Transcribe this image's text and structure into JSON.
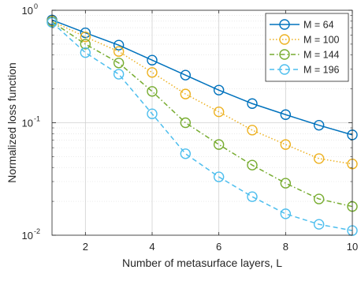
{
  "chart_data": {
    "type": "line",
    "title": "",
    "xlabel": "Number of metasurface layers, L",
    "ylabel": "Normalized loss function",
    "x": [
      1,
      2,
      3,
      4,
      5,
      6,
      7,
      8,
      9,
      10
    ],
    "xlim": [
      1,
      10
    ],
    "xticks": [
      2,
      4,
      6,
      8,
      10
    ],
    "xtick_labels": [
      "2",
      "4",
      "6",
      "8",
      "10"
    ],
    "ylim": [
      0.01,
      1
    ],
    "yscale": "log",
    "ytick_labels": [
      {
        "base": "10",
        "exp": "0"
      },
      {
        "base": "10",
        "exp": "-1"
      },
      {
        "base": "10",
        "exp": "-2"
      }
    ],
    "grid": true,
    "legend_position": "top-right",
    "series": [
      {
        "name": "M = 64",
        "color": "#0072BD",
        "line_style": "solid",
        "marker": "circle",
        "values": [
          0.82,
          0.63,
          0.49,
          0.36,
          0.265,
          0.195,
          0.148,
          0.118,
          0.095,
          0.078
        ]
      },
      {
        "name": "M = 100",
        "color": "#EDB120",
        "line_style": "dotted",
        "marker": "circle",
        "values": [
          0.8,
          0.58,
          0.43,
          0.28,
          0.18,
          0.125,
          0.086,
          0.064,
          0.048,
          0.043
        ]
      },
      {
        "name": "M = 144",
        "color": "#77AC30",
        "line_style": "dash-dot",
        "marker": "circle",
        "values": [
          0.79,
          0.5,
          0.34,
          0.19,
          0.1,
          0.064,
          0.042,
          0.029,
          0.021,
          0.018
        ]
      },
      {
        "name": "M = 196",
        "color": "#4DBEEE",
        "line_style": "dashed",
        "marker": "circle",
        "values": [
          0.78,
          0.42,
          0.27,
          0.12,
          0.053,
          0.033,
          0.022,
          0.0155,
          0.0125,
          0.011
        ]
      }
    ]
  }
}
